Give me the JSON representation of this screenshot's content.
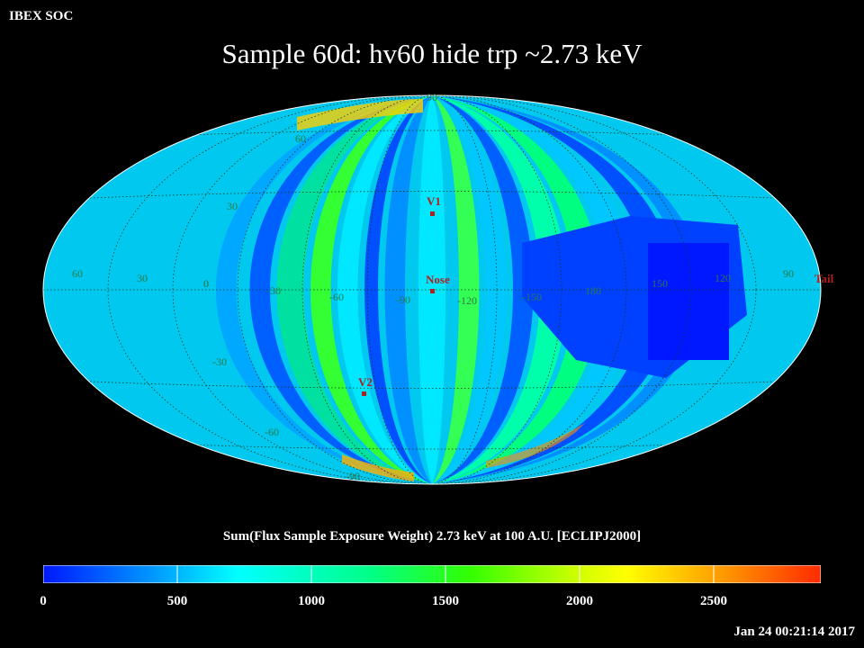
{
  "header": {
    "label": "IBEX SOC"
  },
  "title": "Sample 60d: hv60 hide trp ~2.73 keV",
  "map": {
    "projection": "Mollweide (ecliptic)",
    "latitude_labels": [
      "90",
      "60",
      "30",
      "0",
      "-30",
      "-60",
      "-90"
    ],
    "longitude_labels": [
      "60",
      "30",
      "0",
      "-30",
      "-60",
      "-90",
      "-120",
      "-150",
      "180",
      "150",
      "120",
      "90"
    ],
    "markers": [
      {
        "id": "v1",
        "label": "V1",
        "color": "#b02020"
      },
      {
        "id": "nose",
        "label": "Nose",
        "color": "#b02020"
      },
      {
        "id": "v2",
        "label": "V2",
        "color": "#b02020"
      },
      {
        "id": "tail",
        "label": "Tail",
        "color": "#b02020"
      }
    ]
  },
  "colorbar": {
    "title": "Sum(Flux Sample Exposure Weight)  2.73 keV at 100 A.U. [ECLIPJ2000]",
    "ticks": [
      "0",
      "500",
      "1000",
      "1500",
      "2000",
      "2500"
    ],
    "range": [
      0,
      2900
    ],
    "colors": [
      "#0018ff",
      "#00c8ff",
      "#00ffff",
      "#00ff7a",
      "#33ff00",
      "#c8ff00",
      "#ffff00",
      "#ff9400",
      "#ff2a00"
    ]
  },
  "footer": {
    "timestamp": "Jan 24 00:21:14 2017"
  }
}
